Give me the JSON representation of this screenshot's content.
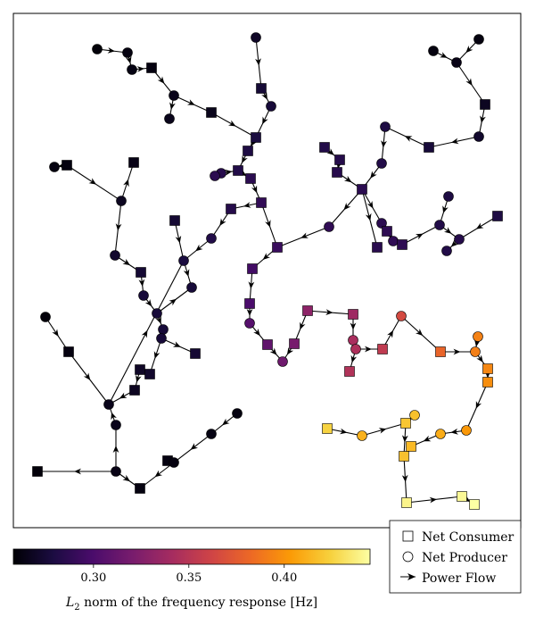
{
  "legend": {
    "consumer_label": "Net Consumer",
    "producer_label": "Net Producer",
    "flow_label": "Power Flow"
  },
  "colorbar": {
    "label": "L2 norm of the frequency response [Hz]",
    "label_main": "L",
    "label_sub": "2",
    "label_rest": " norm of the frequency response [Hz]",
    "colormap": "inferno",
    "vmin": 0.258,
    "vmax": 0.445,
    "ticks": [
      0.3,
      0.35,
      0.4
    ],
    "tick_labels": [
      "0.30",
      "0.35",
      "0.40"
    ]
  },
  "palette": {
    "inferno": [
      "#000004",
      "#1b0c41",
      "#4a0c6b",
      "#781c6d",
      "#a52c60",
      "#cf4446",
      "#ed6925",
      "#fb9b06",
      "#f7d13d",
      "#fcffa4"
    ]
  }
}
